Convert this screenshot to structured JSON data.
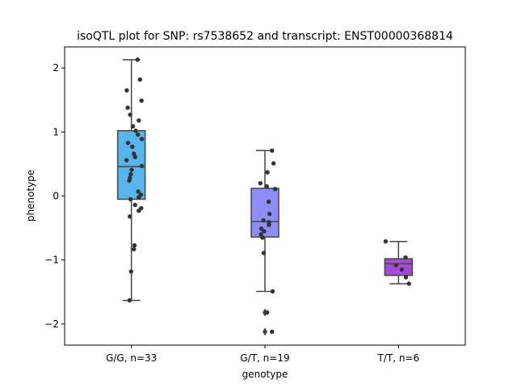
{
  "chart_data": {
    "type": "box",
    "title": "isoQTL plot for SNP: rs7538652 and transcript: ENST00000368814",
    "xlabel": "genotype",
    "ylabel": "phenotype",
    "ylim": [
      -2.33,
      2.33
    ],
    "yticks": [
      -2,
      -1,
      0,
      1,
      2
    ],
    "grid": false,
    "categories": [
      "G/G, n=33",
      "G/T, n=19",
      "T/T, n=6"
    ],
    "colors": [
      "#57b5eb",
      "#8f8cf7",
      "#a648e0"
    ],
    "boxes": [
      {
        "q1": -0.05,
        "median": 0.46,
        "q3": 1.02,
        "whisker_low": -1.63,
        "whisker_high": 2.13,
        "outliers": []
      },
      {
        "q1": -0.64,
        "median": -0.4,
        "q3": 0.12,
        "whisker_low": -1.49,
        "whisker_high": 0.71,
        "outliers": [
          -1.82,
          -2.12
        ]
      },
      {
        "q1": -1.24,
        "median": -1.06,
        "q3": -0.98,
        "whisker_low": -1.37,
        "whisker_high": -0.71,
        "outliers": []
      }
    ],
    "points": [
      [
        [
          0.2,
          2.13
        ],
        [
          -0.15,
          1.65
        ],
        [
          0.28,
          1.82
        ],
        [
          0.33,
          1.49
        ],
        [
          -0.12,
          1.38
        ],
        [
          -0.04,
          1.27
        ],
        [
          0.24,
          1.18
        ],
        [
          0.05,
          1.09
        ],
        [
          0.14,
          1.02
        ],
        [
          0.21,
          0.96
        ],
        [
          0.34,
          0.89
        ],
        [
          -0.11,
          0.83
        ],
        [
          0.03,
          0.77
        ],
        [
          0.08,
          0.66
        ],
        [
          0.12,
          0.61
        ],
        [
          -0.16,
          0.56
        ],
        [
          0.34,
          0.47
        ],
        [
          0.01,
          0.41
        ],
        [
          -0.02,
          0.34
        ],
        [
          -0.05,
          0.28
        ],
        [
          -0.07,
          0.24
        ],
        [
          0.22,
          0.07
        ],
        [
          0.31,
          0.02
        ],
        [
          0.24,
          -0.02
        ],
        [
          -0.03,
          -0.05
        ],
        [
          0.12,
          -0.14
        ],
        [
          0.32,
          -0.19
        ],
        [
          0.24,
          -0.23
        ],
        [
          -0.05,
          -0.32
        ],
        [
          0.1,
          -0.77
        ],
        [
          0.08,
          -0.83
        ],
        [
          -0.01,
          -1.18
        ],
        [
          -0.06,
          -1.63
        ]
      ],
      [
        [
          0.23,
          0.71
        ],
        [
          0.28,
          0.51
        ],
        [
          0.08,
          0.37
        ],
        [
          -0.15,
          0.2
        ],
        [
          0.06,
          0.15
        ],
        [
          0.33,
          0.11
        ],
        [
          0.12,
          -0.09
        ],
        [
          0.15,
          -0.28
        ],
        [
          -0.05,
          -0.38
        ],
        [
          0.13,
          -0.41
        ],
        [
          0.13,
          -0.45
        ],
        [
          -0.12,
          -0.51
        ],
        [
          -0.03,
          -0.55
        ],
        [
          -0.13,
          -0.6
        ],
        [
          -0.08,
          -0.65
        ],
        [
          -0.04,
          -0.89
        ],
        [
          0.25,
          -1.49
        ],
        [
          0.07,
          -1.82
        ],
        [
          0.23,
          -2.12
        ]
      ],
      [
        [
          -0.42,
          -0.71
        ],
        [
          0.23,
          -0.96
        ],
        [
          -0.08,
          -1.08
        ],
        [
          0.11,
          -1.15
        ],
        [
          0.24,
          -1.27
        ],
        [
          0.34,
          -1.37
        ]
      ]
    ]
  }
}
